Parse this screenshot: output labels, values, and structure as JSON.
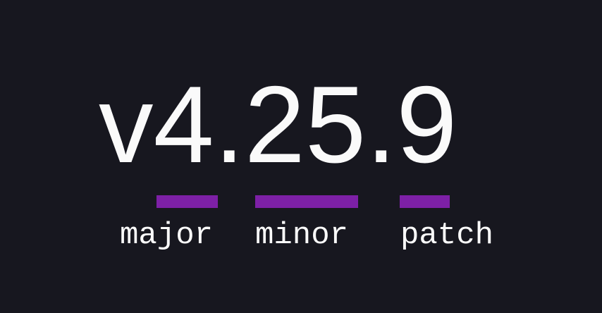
{
  "colors": {
    "background": "#17171f",
    "accent_purple": "#7d20a6",
    "text": "#fafafa"
  },
  "version": {
    "full": "v4.25.9",
    "prefix": "v",
    "separator": ".",
    "segments": [
      {
        "id": "major",
        "value": "4",
        "label": "major"
      },
      {
        "id": "minor",
        "value": "25",
        "label": "minor"
      },
      {
        "id": "patch",
        "value": "9",
        "label": "patch"
      }
    ]
  }
}
